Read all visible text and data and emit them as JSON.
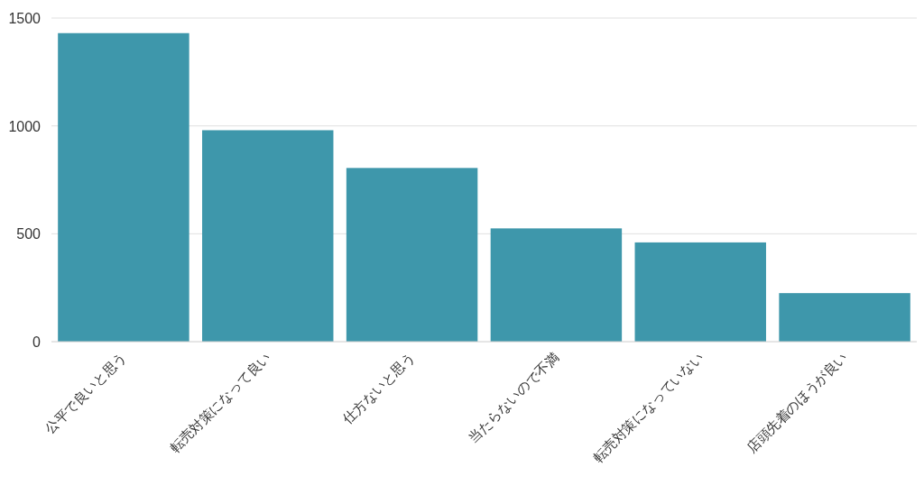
{
  "chart_data": {
    "type": "bar",
    "categories": [
      "公平で良いと思う",
      "転売対策になって良い",
      "仕方ないと思う",
      "当たらないので不満",
      "転売対策になっていない",
      "店頭先着のほうが良い"
    ],
    "values": [
      1430,
      980,
      805,
      525,
      460,
      225
    ],
    "color": "#3e97ab",
    "ylim": [
      0,
      1500
    ],
    "yticks": [
      0,
      500,
      1000,
      1500
    ],
    "grid": "y"
  }
}
